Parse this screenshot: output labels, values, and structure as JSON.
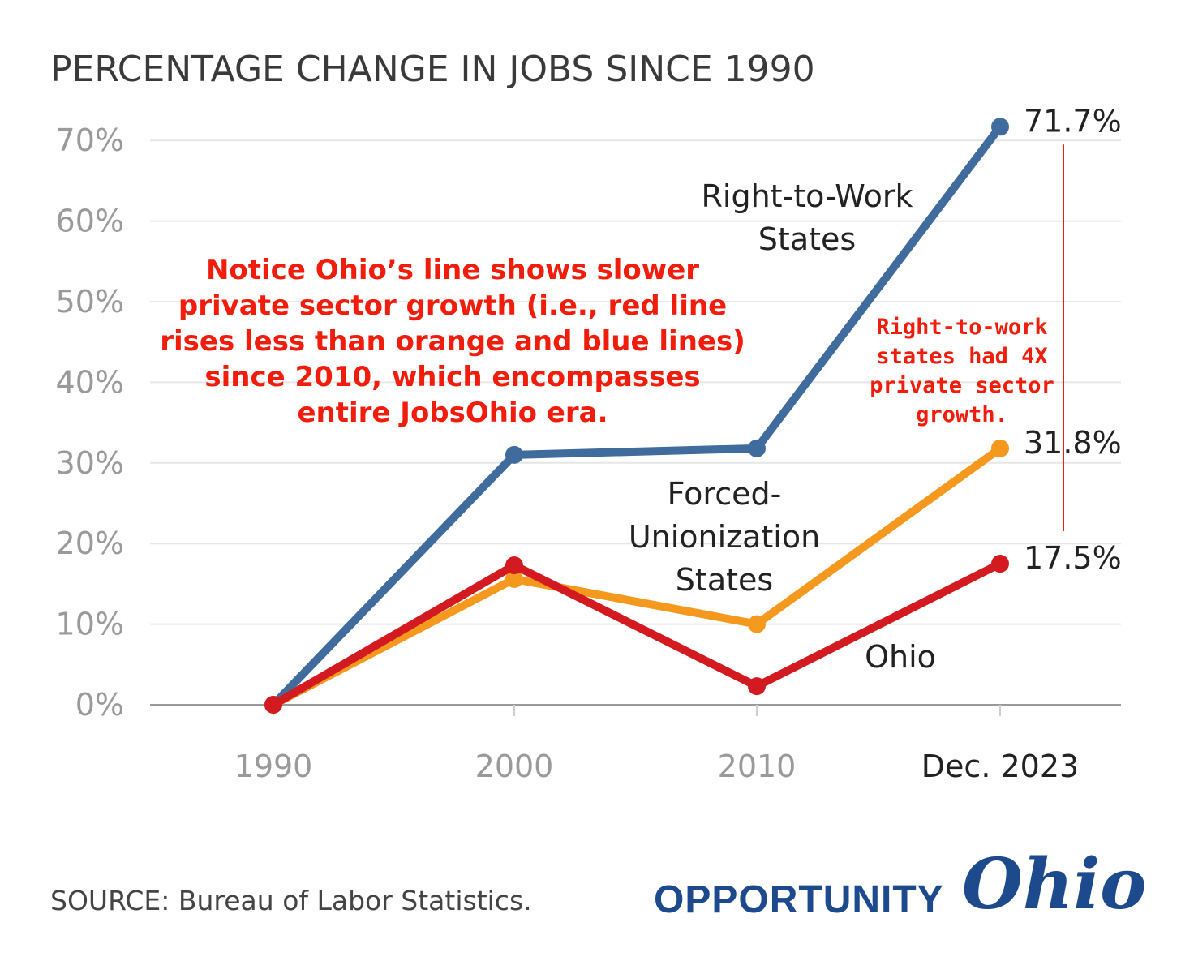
{
  "chart_data": {
    "type": "line",
    "title": "PERCENTAGE CHANGE IN JOBS SINCE 1990",
    "categories": [
      "1990",
      "2000",
      "2010",
      "Dec. 2023"
    ],
    "ylim": [
      0,
      70
    ],
    "yticks": [
      "0%",
      "10%",
      "20%",
      "30%",
      "40%",
      "50%",
      "60%",
      "70%"
    ],
    "grid": true,
    "series": [
      {
        "name": "Right-to-Work States",
        "color": "#3f6c9d",
        "values": [
          0,
          31,
          31.8,
          71.7
        ],
        "end_label": "71.7%"
      },
      {
        "name": "Forced-Unionization States",
        "color": "#f5981e",
        "values": [
          0,
          15.6,
          10,
          31.8
        ],
        "end_label": "31.8%"
      },
      {
        "name": "Ohio",
        "color": "#d31a21",
        "values": [
          0,
          17.3,
          2.3,
          17.5
        ],
        "end_label": "17.5%"
      }
    ],
    "series_labels": [
      {
        "lines": [
          "Right-to-Work",
          "States"
        ]
      },
      {
        "lines": [
          "Forced-",
          "Unionization",
          "States"
        ]
      },
      {
        "lines": [
          "Ohio"
        ]
      }
    ],
    "annotations": {
      "main": [
        "Notice Ohio’s line shows slower",
        "private sector growth (i.e., red line",
        "rises less than orange and blue lines)",
        "since 2010, which encompasses",
        "entire JobsOhio era."
      ],
      "side": [
        "Right-to-work",
        "states had 4X",
        "private sector",
        "growth."
      ],
      "color": "#f01c0c"
    }
  },
  "footer": {
    "source": "SOURCE: Bureau of Labor Statistics.",
    "logo_word": "OPPORTUNITY",
    "logo_script": "Ohio",
    "logo_color": "#1d4a8c"
  }
}
